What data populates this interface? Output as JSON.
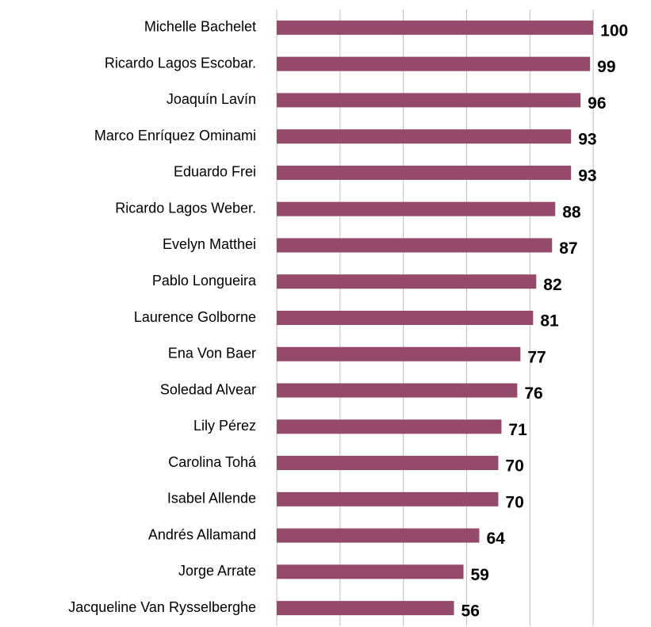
{
  "chart_data": {
    "type": "bar",
    "orientation": "horizontal",
    "categories": [
      "Michelle Bachelet",
      "Ricardo Lagos Escobar.",
      "Joaquín Lavín",
      "Marco Enríquez Ominami",
      "Eduardo Frei",
      "Ricardo Lagos Weber.",
      "Evelyn Matthei",
      "Pablo Longueira",
      "Laurence Golborne",
      "Ena Von Baer",
      "Soledad Alvear",
      "Lily Pérez",
      "Carolina Tohá",
      "Isabel Allende",
      "Andrés Allamand",
      "Jorge Arrate",
      "Jacqueline Van Rysselberghe"
    ],
    "values": [
      100,
      99,
      96,
      93,
      93,
      88,
      87,
      82,
      81,
      77,
      76,
      71,
      70,
      70,
      64,
      59,
      56
    ],
    "color": "#954a6c",
    "xlim": [
      0,
      118
    ],
    "xticks": [
      0,
      20,
      40,
      60,
      80,
      100
    ],
    "grid": true
  }
}
